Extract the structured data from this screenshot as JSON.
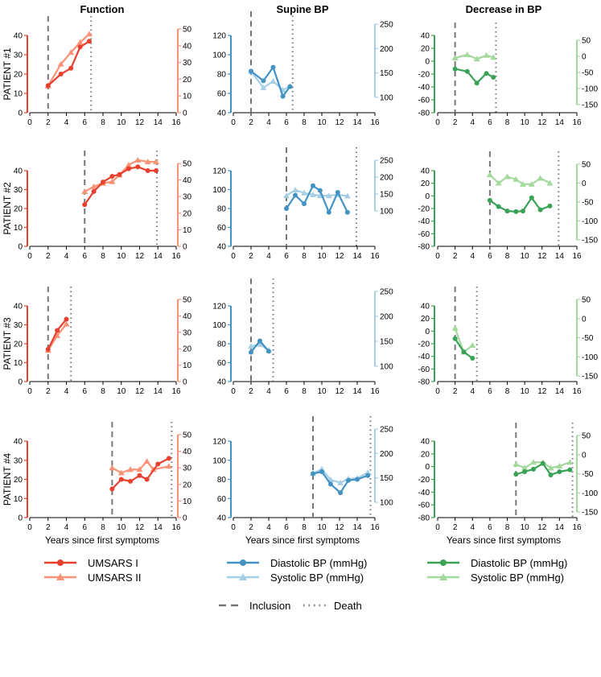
{
  "columns": [
    "Function",
    "Supine BP",
    "Decrease in BP"
  ],
  "patients": [
    "PATIENT #1",
    "PATIENT #2",
    "PATIENT #3",
    "PATIENT #4"
  ],
  "xlabel": "Years since first symptoms",
  "colors": {
    "umsars1": "#e8402f",
    "umsars2": "#f99276",
    "supDia": "#4293c4",
    "supSys": "#a6cfe6",
    "decDia": "#3aa257",
    "decSys": "#a3d99c",
    "ref": "#777777"
  },
  "legends": {
    "function": [
      "UMSARS I",
      "UMSARS II"
    ],
    "supine": [
      "Diastolic BP (mmHg)",
      "Systolic BP (mmHg)"
    ],
    "decrease": [
      "Diastolic BP (mmHg)",
      "Systolic BP (mmHg)"
    ],
    "reference": [
      "Inclusion",
      "Death"
    ]
  },
  "chart_data": [
    {
      "type": "line",
      "title": "Function",
      "xlim": [
        0,
        16
      ],
      "xticks": [
        0,
        2,
        4,
        6,
        8,
        10,
        12,
        14,
        16
      ],
      "left_axis": {
        "ylim": [
          0,
          40
        ],
        "ticks": [
          0,
          10,
          20,
          30,
          40
        ]
      },
      "right_axis": {
        "ylim": [
          0,
          50
        ],
        "ticks": [
          0,
          10,
          20,
          30,
          40,
          50
        ]
      },
      "patients": [
        {
          "patient": "PATIENT #1",
          "inclusion": 2,
          "death": 6.7,
          "series": [
            {
              "name": "UMSARS I",
              "axis": "left",
              "x": [
                2,
                3.4,
                4.5,
                5.5,
                6.5
              ],
              "y": [
                14,
                20,
                23,
                34,
                37
              ]
            },
            {
              "name": "UMSARS II",
              "axis": "right",
              "x": [
                2,
                3.4,
                4.5,
                5.5,
                6.5
              ],
              "y": [
                16,
                29,
                36,
                42,
                47
              ]
            }
          ]
        },
        {
          "patient": "PATIENT #2",
          "inclusion": 6,
          "death": 13.9,
          "series": [
            {
              "name": "UMSARS I",
              "axis": "left",
              "x": [
                6,
                7,
                8,
                9,
                9.8,
                10.8,
                11.8,
                12.9,
                13.8
              ],
              "y": [
                22,
                29,
                34,
                37,
                38,
                41,
                42,
                40,
                40
              ]
            },
            {
              "name": "UMSARS II",
              "axis": "right",
              "x": [
                6,
                7,
                8,
                9,
                9.8,
                10.8,
                11.8,
                12.9,
                13.8
              ],
              "y": [
                33,
                36,
                38,
                39,
                43,
                49,
                52,
                51,
                51
              ]
            }
          ]
        },
        {
          "patient": "PATIENT #3",
          "inclusion": 2,
          "death": 4.5,
          "series": [
            {
              "name": "UMSARS I",
              "axis": "left",
              "x": [
                2,
                3,
                4
              ],
              "y": [
                17,
                27,
                33
              ]
            },
            {
              "name": "UMSARS II",
              "axis": "right",
              "x": [
                2,
                3,
                4
              ],
              "y": [
                19,
                28,
                35
              ]
            }
          ]
        },
        {
          "patient": "PATIENT #4",
          "inclusion": 9,
          "death": 15.5,
          "series": [
            {
              "name": "UMSARS I",
              "axis": "left",
              "x": [
                9,
                10,
                11,
                12,
                12.8,
                14,
                15.2
              ],
              "y": [
                15,
                20,
                19,
                22,
                20,
                28,
                31
              ]
            },
            {
              "name": "UMSARS II",
              "axis": "right",
              "x": [
                9,
                10,
                11,
                12,
                12.8,
                13.5,
                15.2
              ],
              "y": [
                30,
                27,
                29,
                29,
                34,
                29,
                31
              ]
            }
          ]
        }
      ]
    },
    {
      "type": "line",
      "title": "Supine BP",
      "xlim": [
        0,
        16
      ],
      "xticks": [
        0,
        2,
        4,
        6,
        8,
        10,
        12,
        14,
        16
      ],
      "left_axis": {
        "ylim": [
          40,
          120
        ],
        "ticks": [
          40,
          60,
          80,
          100,
          120
        ]
      },
      "right_axis": {
        "ylim": [
          100,
          250
        ],
        "ticks": [
          100,
          150,
          200,
          250
        ]
      },
      "patients": [
        {
          "patient": "PATIENT #1",
          "inclusion": 2,
          "death": 6.7,
          "series": [
            {
              "name": "Diastolic BP (mmHg)",
              "axis": "left",
              "x": [
                2,
                3.4,
                4.5,
                5.6,
                6.4
              ],
              "y": [
                83,
                73,
                87,
                57,
                67
              ]
            },
            {
              "name": "Systolic BP (mmHg)",
              "axis": "right",
              "x": [
                2,
                3.4,
                4.5,
                5.6,
                6.4
              ],
              "y": [
                153,
                120,
                133,
                115,
                123
              ]
            }
          ]
        },
        {
          "patient": "PATIENT #2",
          "inclusion": 6,
          "death": 13.9,
          "series": [
            {
              "name": "Diastolic BP (mmHg)",
              "axis": "left",
              "x": [
                6,
                7,
                8,
                9,
                9.8,
                10.8,
                11.8,
                12.9
              ],
              "y": [
                80,
                94,
                85,
                104,
                99,
                76,
                97,
                76
              ]
            },
            {
              "name": "Systolic BP (mmHg)",
              "axis": "right",
              "x": [
                6,
                7,
                8,
                9,
                9.8,
                10.8,
                11.8,
                12.9
              ],
              "y": [
                145,
                162,
                153,
                148,
                145,
                145,
                148,
                144
              ]
            }
          ]
        },
        {
          "patient": "PATIENT #3",
          "inclusion": 2,
          "death": 4.5,
          "series": [
            {
              "name": "Diastolic BP (mmHg)",
              "axis": "left",
              "x": [
                2,
                3,
                4
              ],
              "y": [
                71,
                83,
                72
              ]
            },
            {
              "name": "Systolic BP (mmHg)",
              "axis": "right",
              "x": [
                2,
                3,
                4
              ],
              "y": [
                140,
                144,
                132
              ]
            }
          ]
        },
        {
          "patient": "PATIENT #4",
          "inclusion": 9,
          "death": 15.5,
          "series": [
            {
              "name": "Diastolic BP (mmHg)",
              "axis": "left",
              "x": [
                9,
                10,
                11,
                12.1,
                13,
                14,
                15.2
              ],
              "y": [
                86,
                88,
                75,
                66,
                79,
                80,
                84
              ]
            },
            {
              "name": "Systolic BP (mmHg)",
              "axis": "right",
              "x": [
                9,
                10,
                11,
                12.1,
                13,
                14,
                15.2
              ],
              "y": [
                159,
                168,
                146,
                140,
                148,
                149,
                161
              ]
            }
          ]
        }
      ]
    },
    {
      "type": "line",
      "title": "Decrease in BP",
      "xlim": [
        0,
        16
      ],
      "xticks": [
        0,
        2,
        4,
        6,
        8,
        10,
        12,
        14,
        16
      ],
      "left_axis": {
        "ylim": [
          -80,
          40
        ],
        "ticks": [
          -80,
          -60,
          -40,
          -20,
          0,
          20,
          40
        ]
      },
      "right_axis": {
        "ylim": [
          -150,
          50
        ],
        "ticks": [
          -150,
          -100,
          -50,
          0,
          50
        ]
      },
      "patients": [
        {
          "patient": "PATIENT #1",
          "inclusion": 2,
          "death": 6.7,
          "series": [
            {
              "name": "Diastolic BP (mmHg)",
              "axis": "left",
              "x": [
                2,
                3.4,
                4.5,
                5.6,
                6.4
              ],
              "y": [
                -12,
                -16,
                -34,
                -19,
                -25
              ]
            },
            {
              "name": "Systolic BP (mmHg)",
              "axis": "right",
              "x": [
                2,
                3.4,
                4.5,
                5.6,
                6.4
              ],
              "y": [
                -5,
                5,
                -8,
                3,
                -3
              ]
            }
          ]
        },
        {
          "patient": "PATIENT #2",
          "inclusion": 6,
          "death": 13.9,
          "series": [
            {
              "name": "Diastolic BP (mmHg)",
              "axis": "left",
              "x": [
                6,
                7,
                8,
                9,
                9.8,
                10.8,
                11.8,
                12.9
              ],
              "y": [
                -7,
                -17,
                -24,
                -25,
                -24,
                -3,
                -22,
                -16
              ]
            },
            {
              "name": "Systolic BP (mmHg)",
              "axis": "right",
              "x": [
                6,
                7,
                8,
                9,
                9.8,
                10.8,
                11.8,
                12.9
              ],
              "y": [
                22,
                0,
                17,
                10,
                -3,
                -3,
                13,
                0
              ]
            }
          ]
        },
        {
          "patient": "PATIENT #3",
          "inclusion": 2,
          "death": 4.5,
          "series": [
            {
              "name": "Diastolic BP (mmHg)",
              "axis": "left",
              "x": [
                2,
                3,
                4
              ],
              "y": [
                -12,
                -33,
                -43
              ]
            },
            {
              "name": "Systolic BP (mmHg)",
              "axis": "right",
              "x": [
                2,
                3,
                4
              ],
              "y": [
                -25,
                -88,
                -70
              ]
            }
          ]
        },
        {
          "patient": "PATIENT #4",
          "inclusion": 9,
          "death": 15.5,
          "series": [
            {
              "name": "Diastolic BP (mmHg)",
              "axis": "left",
              "x": [
                9,
                10,
                11,
                12.1,
                13,
                14,
                15.2
              ],
              "y": [
                -12,
                -8,
                -4,
                5,
                -13,
                -8,
                -5
              ]
            },
            {
              "name": "Systolic BP (mmHg)",
              "axis": "right",
              "x": [
                9,
                10,
                11,
                12.1,
                13,
                14,
                15.2
              ],
              "y": [
                -25,
                -35,
                -20,
                -20,
                -35,
                -30,
                -20
              ]
            }
          ]
        }
      ]
    }
  ]
}
